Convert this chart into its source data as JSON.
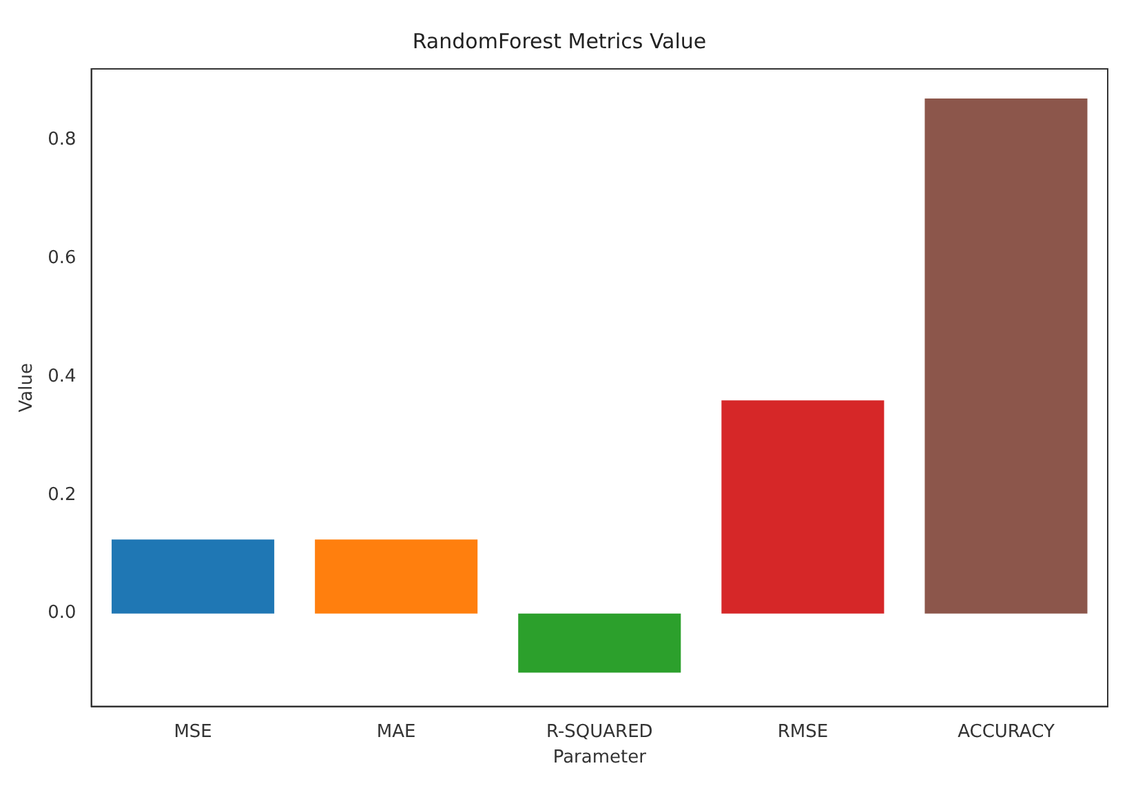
{
  "chart_data": {
    "type": "bar",
    "title": "RandomForest Metrics Value",
    "xlabel": "Parameter",
    "ylabel": "Value",
    "categories": [
      "MSE",
      "MAE",
      "R-SQUARED",
      "RMSE",
      "ACCURACY"
    ],
    "values": [
      0.125,
      0.125,
      -0.1,
      0.36,
      0.87
    ],
    "colors": [
      "#1f77b4",
      "#ff7f0e",
      "#2ca02c",
      "#d62728",
      "#8c564b"
    ],
    "ylim": [
      -0.157,
      0.92
    ],
    "yticks": [
      {
        "value": 0,
        "label": "0.0"
      },
      0.2,
      0.4,
      0.6,
      0.8
    ],
    "grid": false,
    "legend": false
  }
}
